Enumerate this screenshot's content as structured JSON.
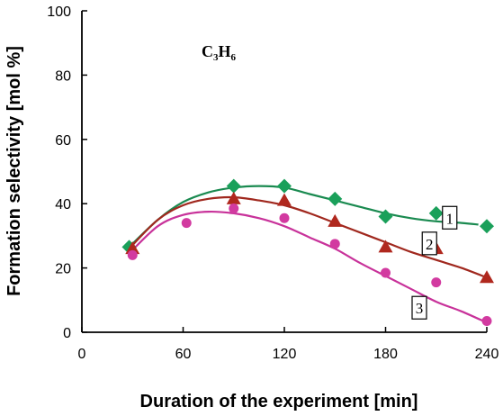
{
  "chart_data": {
    "type": "scatter",
    "title": "C3H6",
    "title_main": "C",
    "title_sub1": "3",
    "title_mid": "H",
    "title_sub2": "6",
    "xlabel": "Duration of the experiment [min]",
    "ylabel": "Formation selectivity [mol %]",
    "xlim": [
      0,
      240
    ],
    "ylim": [
      0,
      100
    ],
    "xticks": [
      "0",
      "60",
      "120",
      "180",
      "240"
    ],
    "yticks": [
      "0",
      "20",
      "40",
      "60",
      "80",
      "100"
    ],
    "grid": false,
    "series": [
      {
        "name": "1",
        "marker": "diamond",
        "color": "#1aa05a",
        "line_color": "#1a8a50",
        "x": [
          28,
          90,
          120,
          150,
          180,
          210,
          240
        ],
        "y": [
          26.5,
          45.5,
          45.5,
          41.5,
          36,
          37,
          33
        ],
        "fit": [
          [
            28,
            26.5
          ],
          [
            45,
            35
          ],
          [
            60,
            40.5
          ],
          [
            75,
            43.5
          ],
          [
            90,
            45
          ],
          [
            105,
            45.5
          ],
          [
            120,
            45
          ],
          [
            135,
            43
          ],
          [
            150,
            41
          ],
          [
            165,
            39
          ],
          [
            180,
            37
          ],
          [
            195,
            35.5
          ],
          [
            210,
            34.5
          ],
          [
            225,
            34
          ],
          [
            235,
            33.5
          ]
        ]
      },
      {
        "name": "2",
        "marker": "triangle",
        "color": "#b0281e",
        "line_color": "#a0281e",
        "x": [
          30,
          90,
          120,
          150,
          180,
          210,
          240
        ],
        "y": [
          26,
          41.5,
          41,
          34.5,
          26.5,
          26,
          17
        ],
        "fit": [
          [
            28,
            26
          ],
          [
            45,
            35
          ],
          [
            60,
            39.5
          ],
          [
            75,
            41.5
          ],
          [
            90,
            42
          ],
          [
            105,
            41
          ],
          [
            120,
            39.5
          ],
          [
            135,
            37
          ],
          [
            150,
            34
          ],
          [
            165,
            31
          ],
          [
            180,
            28
          ],
          [
            195,
            25
          ],
          [
            210,
            22.5
          ],
          [
            225,
            20
          ],
          [
            240,
            17
          ]
        ]
      },
      {
        "name": "3",
        "marker": "circle",
        "color": "#d23aa0",
        "line_color": "#c8329a",
        "x": [
          30,
          62,
          90,
          120,
          150,
          180,
          210,
          240
        ],
        "y": [
          24,
          34,
          38.5,
          35.5,
          27.5,
          18.5,
          15.5,
          3.5
        ],
        "fit": [
          [
            28,
            24.5
          ],
          [
            45,
            33
          ],
          [
            60,
            36.5
          ],
          [
            75,
            37.5
          ],
          [
            90,
            37
          ],
          [
            105,
            35.5
          ],
          [
            120,
            33
          ],
          [
            135,
            29.5
          ],
          [
            150,
            26
          ],
          [
            165,
            21.5
          ],
          [
            180,
            17.5
          ],
          [
            195,
            13.5
          ],
          [
            210,
            9.5
          ],
          [
            225,
            6.5
          ],
          [
            240,
            3
          ]
        ]
      }
    ]
  }
}
